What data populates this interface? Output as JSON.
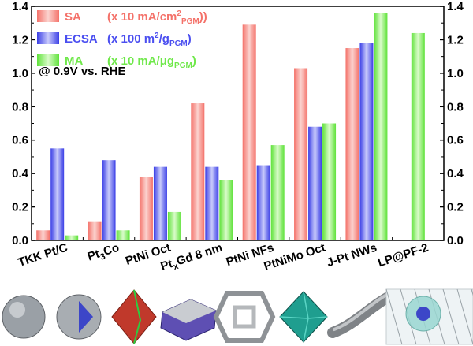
{
  "chart_data": {
    "type": "bar",
    "categories": [
      {
        "main": "TKK Pt/C",
        "sub": "",
        "rest": ""
      },
      {
        "main": "Pt",
        "sub": "3",
        "rest": "Co"
      },
      {
        "main": "PtNi Oct",
        "sub": "",
        "rest": ""
      },
      {
        "main": "Pt",
        "sub": "x",
        "rest": "Gd 8 nm"
      },
      {
        "main": "PtNi NFs",
        "sub": "",
        "rest": ""
      },
      {
        "main": "PtNiMo Oct",
        "sub": "",
        "rest": ""
      },
      {
        "main": "J-Pt NWs",
        "sub": "",
        "rest": ""
      },
      {
        "main": "LP@PF-2",
        "sub": "",
        "rest": ""
      }
    ],
    "series": [
      {
        "name": "SA",
        "unit_prefix": "(x 10 mA/cm",
        "unit_sup": "2",
        "unit_sub": "PGM",
        "unit_suffix": "))",
        "color": "#f4726a",
        "values": [
          0.06,
          0.11,
          0.38,
          0.82,
          1.29,
          1.03,
          1.15,
          null
        ]
      },
      {
        "name": "ECSA",
        "unit_prefix": "(x 100 m",
        "unit_sup": "2",
        "unit_sub": "",
        "unit_suffix": "/g",
        "unit_sub2": "PGM",
        "unit_end": ")",
        "color": "#4b4ff0",
        "values": [
          0.55,
          0.48,
          0.44,
          0.44,
          0.45,
          0.68,
          1.18,
          null
        ]
      },
      {
        "name": "MA",
        "unit_prefix": "(x 10 mA/μg",
        "unit_sup": "",
        "unit_sub": "PGM",
        "unit_suffix": ")",
        "color": "#6fe84a",
        "values": [
          0.03,
          0.06,
          0.17,
          0.36,
          0.57,
          0.7,
          1.36,
          1.24
        ]
      }
    ],
    "annotation": "@ 0.9V vs. RHE",
    "ylim": [
      0.0,
      1.4
    ],
    "yticks": [
      "0.0",
      "0.2",
      "0.4",
      "0.6",
      "0.8",
      "1.0",
      "1.2",
      "1.4"
    ],
    "legend_position": "top-left",
    "secondary_axis": "right",
    "title": "",
    "xlabel": "",
    "ylabel": ""
  }
}
